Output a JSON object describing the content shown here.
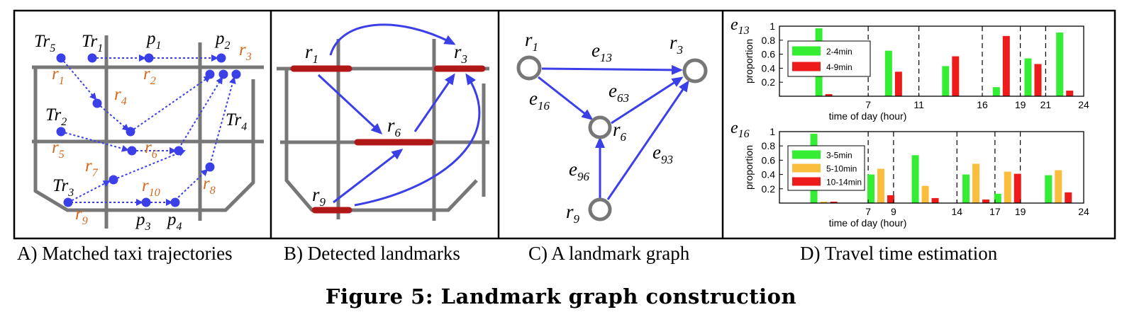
{
  "colors": {
    "road": "#777777",
    "trajectory": "#3b3fe8",
    "node_label": "#d2691e",
    "landmark": "#b01818",
    "green": "#33ee33",
    "orange": "#fbbd3c",
    "red": "#ee1b1b"
  },
  "panels": {
    "a": {
      "caption": "A) Matched taxi trajectories",
      "trajectory_labels": [
        {
          "base": "Tr",
          "sub": "5"
        },
        {
          "base": "Tr",
          "sub": "1"
        },
        {
          "base": "Tr",
          "sub": "2"
        },
        {
          "base": "Tr",
          "sub": "3"
        },
        {
          "base": "Tr",
          "sub": "4"
        }
      ],
      "point_labels": [
        {
          "base": "p",
          "sub": "1"
        },
        {
          "base": "p",
          "sub": "2"
        },
        {
          "base": "p",
          "sub": "3"
        },
        {
          "base": "p",
          "sub": "4"
        }
      ],
      "road_labels": [
        {
          "base": "r",
          "sub": "1"
        },
        {
          "base": "r",
          "sub": "2"
        },
        {
          "base": "r",
          "sub": "3"
        },
        {
          "base": "r",
          "sub": "4"
        },
        {
          "base": "r",
          "sub": "5"
        },
        {
          "base": "r",
          "sub": "6"
        },
        {
          "base": "r",
          "sub": "7"
        },
        {
          "base": "r",
          "sub": "10"
        },
        {
          "base": "r",
          "sub": "8"
        },
        {
          "base": "r",
          "sub": "9"
        }
      ]
    },
    "b": {
      "caption": "B) Detected landmarks",
      "labels": [
        {
          "base": "r",
          "sub": "1"
        },
        {
          "base": "r",
          "sub": "3"
        },
        {
          "base": "r",
          "sub": "6"
        },
        {
          "base": "r",
          "sub": "9"
        }
      ]
    },
    "c": {
      "caption": "C) A landmark graph",
      "nodes": [
        {
          "base": "r",
          "sub": "1"
        },
        {
          "base": "r",
          "sub": "3"
        },
        {
          "base": "r",
          "sub": "6"
        },
        {
          "base": "r",
          "sub": "9"
        }
      ],
      "edges": [
        {
          "base": "e",
          "sub": "13"
        },
        {
          "base": "e",
          "sub": "16"
        },
        {
          "base": "e",
          "sub": "63"
        },
        {
          "base": "e",
          "sub": "93"
        },
        {
          "base": "e",
          "sub": "96"
        }
      ]
    },
    "d": {
      "caption": "D) Travel time estimation"
    }
  },
  "chart_data": [
    {
      "type": "bar",
      "title": {
        "base": "e",
        "sub": "13"
      },
      "xlabel": "time of day (hour)",
      "ylabel": "proportion",
      "ylim": [
        0,
        1
      ],
      "yticks": [
        0.2,
        0.4,
        0.6,
        0.8,
        1
      ],
      "ytick_labels": [
        "0.2",
        "0.4",
        "0.6",
        "0.8",
        "1"
      ],
      "xlim": [
        0,
        24
      ],
      "xticks": [
        7,
        11,
        16,
        19,
        21,
        24
      ],
      "xtick_labels": [
        "7",
        "11",
        "16",
        "19",
        "21",
        "24"
      ],
      "legend_position": "top-left",
      "series": [
        {
          "name": "2-4min",
          "color": "#33ee33"
        },
        {
          "name": "4-9min",
          "color": "#ee1b1b"
        }
      ],
      "groups": [
        {
          "x": 3.5,
          "values": [
            0.97,
            0.03
          ]
        },
        {
          "x": 9.0,
          "values": [
            0.65,
            0.35
          ]
        },
        {
          "x": 13.5,
          "values": [
            0.43,
            0.57
          ]
        },
        {
          "x": 17.5,
          "values": [
            0.13,
            0.86
          ]
        },
        {
          "x": 20.0,
          "values": [
            0.54,
            0.46
          ]
        },
        {
          "x": 22.5,
          "values": [
            0.91,
            0.08
          ]
        }
      ]
    },
    {
      "type": "bar",
      "title": {
        "base": "e",
        "sub": "16"
      },
      "xlabel": "time of day (hour)",
      "ylabel": "proportion",
      "ylim": [
        0,
        1
      ],
      "yticks": [
        0.2,
        0.4,
        0.6,
        0.8,
        1
      ],
      "ytick_labels": [
        "0.2",
        "0.4",
        "0.6",
        "0.8",
        "1"
      ],
      "xlim": [
        0,
        24
      ],
      "xticks": [
        7,
        9,
        14,
        17,
        19,
        24
      ],
      "xtick_labels": [
        "7",
        "9",
        "14",
        "17",
        "19",
        "24"
      ],
      "legend_position": "top-left",
      "series": [
        {
          "name": "3-5min",
          "color": "#33ee33"
        },
        {
          "name": "5-10min",
          "color": "#fbbd3c"
        },
        {
          "name": "10-14min",
          "color": "#ee1b1b"
        }
      ],
      "groups": [
        {
          "x": 3.5,
          "values": [
            0.97,
            0.02,
            0.02
          ]
        },
        {
          "x": 8.0,
          "values": [
            0.4,
            0.48,
            0.11
          ]
        },
        {
          "x": 11.5,
          "values": [
            0.67,
            0.24,
            0.07
          ]
        },
        {
          "x": 15.5,
          "values": [
            0.4,
            0.55,
            0.05
          ]
        },
        {
          "x": 18.0,
          "values": [
            0.13,
            0.44,
            0.41
          ]
        },
        {
          "x": 22.0,
          "values": [
            0.39,
            0.46,
            0.15
          ]
        }
      ]
    }
  ],
  "figure_caption": "Figure 5: Landmark graph construction"
}
